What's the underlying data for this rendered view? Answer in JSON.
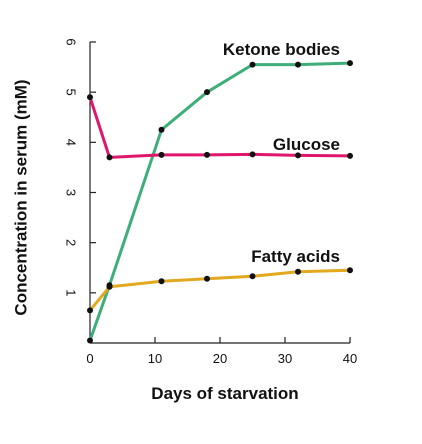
{
  "chart_data": {
    "type": "line",
    "xlabel": "Days of starvation",
    "ylabel": "Concentration in serum (mM)",
    "xlim": [
      0,
      40
    ],
    "ylim": [
      0,
      6
    ],
    "xticks": [
      "0",
      "10",
      "20",
      "30",
      "40"
    ],
    "yticks": [
      "1",
      "2",
      "3",
      "4",
      "5",
      "6"
    ],
    "grid": false,
    "legend": "none (series labeled directly on the lines)",
    "series": [
      {
        "name": "Ketone bodies",
        "color": "#3dae78",
        "points": [
          [
            0,
            0.05
          ],
          [
            3,
            1.15
          ],
          [
            11,
            4.25
          ],
          [
            18,
            5.0
          ],
          [
            25,
            5.55
          ],
          [
            32,
            5.55
          ],
          [
            40,
            5.58
          ]
        ]
      },
      {
        "name": "Glucose",
        "color": "#e0156c",
        "points": [
          [
            0,
            4.9
          ],
          [
            3,
            3.7
          ],
          [
            11,
            3.75
          ],
          [
            18,
            3.75
          ],
          [
            25,
            3.76
          ],
          [
            32,
            3.74
          ],
          [
            40,
            3.73
          ]
        ]
      },
      {
        "name": "Fatty acids",
        "color": "#e2a81e",
        "points": [
          [
            0,
            0.65
          ],
          [
            3,
            1.12
          ],
          [
            11,
            1.23
          ],
          [
            18,
            1.28
          ],
          [
            25,
            1.33
          ],
          [
            32,
            1.42
          ],
          [
            40,
            1.45
          ]
        ]
      }
    ]
  }
}
